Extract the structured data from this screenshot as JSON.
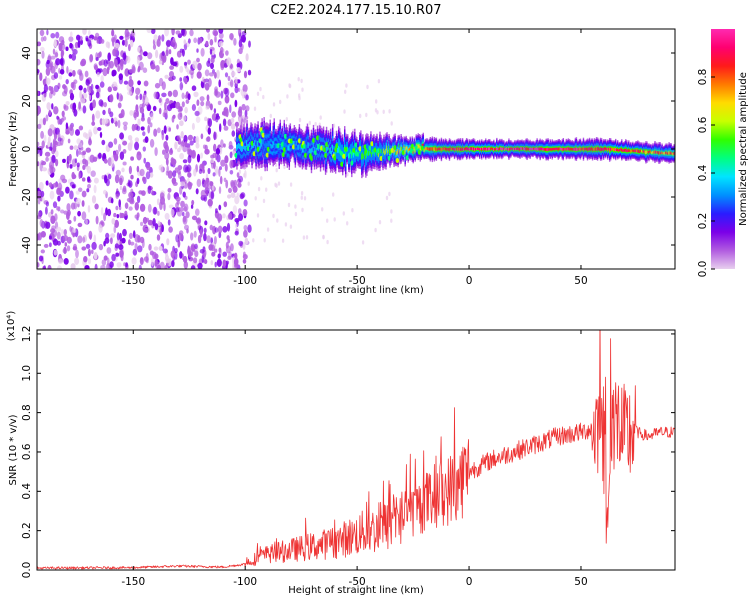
{
  "title": "C2E2.2024.177.15.10.R07",
  "chart_data": [
    {
      "type": "heatmap",
      "xlabel": "Height of straight line (km)",
      "ylabel": "Frequency (Hz)",
      "xlim": [
        -193,
        92
      ],
      "ylim": [
        -50,
        50
      ],
      "xticks": [
        -150,
        -100,
        -50,
        0,
        50
      ],
      "yticks": [
        -40,
        -20,
        0,
        20,
        40
      ],
      "colorbar": {
        "label": "Normalized spectral amplitude",
        "range": [
          0,
          1
        ],
        "ticks": [
          "0.0",
          "0.2",
          "0.4",
          "0.6",
          "0.8"
        ],
        "colormap": [
          "#e8cfee",
          "#b15ce0",
          "#7b00e8",
          "#2a1cff",
          "#0090ff",
          "#00e5ff",
          "#00ff80",
          "#30ff00",
          "#c8ff00",
          "#ffdc00",
          "#ff7a00",
          "#ff1a1a",
          "#ff0070",
          "#ff2ab0"
        ]
      },
      "noise_region_km": [
        -193,
        -104
      ],
      "signal_band": [
        {
          "x": -104,
          "center_hz": 1,
          "halfwidth_hz": 8,
          "peak": 0.4
        },
        {
          "x": -90,
          "center_hz": 2,
          "halfwidth_hz": 8,
          "peak": 0.35
        },
        {
          "x": -75,
          "center_hz": 1,
          "halfwidth_hz": 7,
          "peak": 0.35
        },
        {
          "x": -60,
          "center_hz": -1,
          "halfwidth_hz": 8,
          "peak": 0.45
        },
        {
          "x": -45,
          "center_hz": -2,
          "halfwidth_hz": 7,
          "peak": 0.5
        },
        {
          "x": -30,
          "center_hz": 0,
          "halfwidth_hz": 5,
          "peak": 0.65
        },
        {
          "x": -15,
          "center_hz": 0,
          "halfwidth_hz": 4,
          "peak": 0.85
        },
        {
          "x": 0,
          "center_hz": 0,
          "halfwidth_hz": 3.5,
          "peak": 0.95
        },
        {
          "x": 30,
          "center_hz": 0,
          "halfwidth_hz": 3.5,
          "peak": 0.95
        },
        {
          "x": 60,
          "center_hz": 0,
          "halfwidth_hz": 4,
          "peak": 0.9
        },
        {
          "x": 92,
          "center_hz": -2,
          "halfwidth_hz": 3.5,
          "peak": 0.8
        }
      ]
    },
    {
      "type": "line",
      "xlabel": "Height of straight line (km)",
      "ylabel": "SNR (10 * v/v)",
      "yscale_note": "(x10⁴)",
      "xlim": [
        -193,
        92
      ],
      "ylim": [
        0.0,
        1.22
      ],
      "xticks": [
        -150,
        -100,
        -50,
        0,
        50
      ],
      "yticks": [
        "0.0",
        "0.2",
        "0.4",
        "0.6",
        "0.8",
        "1.0",
        "1.2"
      ],
      "color": "#ee3333",
      "series": [
        {
          "x": [
            -193,
            -150,
            -130,
            -110,
            -100,
            -95,
            -90,
            -80,
            -70,
            -60,
            -55,
            -50,
            -45,
            -40,
            -35,
            -30,
            -25,
            -20,
            -15,
            -10,
            -5,
            0,
            5,
            10,
            15,
            20,
            25,
            30,
            40,
            50,
            55,
            58,
            60,
            61,
            62,
            63,
            65,
            68,
            70,
            72,
            75,
            80,
            85,
            92
          ],
          "y": [
            0.01,
            0.012,
            0.02,
            0.015,
            0.03,
            0.06,
            0.08,
            0.1,
            0.12,
            0.14,
            0.16,
            0.18,
            0.2,
            0.2,
            0.24,
            0.28,
            0.3,
            0.34,
            0.38,
            0.4,
            0.44,
            0.5,
            0.53,
            0.56,
            0.58,
            0.6,
            0.62,
            0.64,
            0.68,
            0.7,
            0.72,
            0.75,
            0.7,
            0.5,
            0.1,
            0.6,
            0.8,
            0.7,
            0.65,
            0.7,
            0.7,
            0.68,
            0.7,
            0.7
          ]
        }
      ]
    }
  ]
}
